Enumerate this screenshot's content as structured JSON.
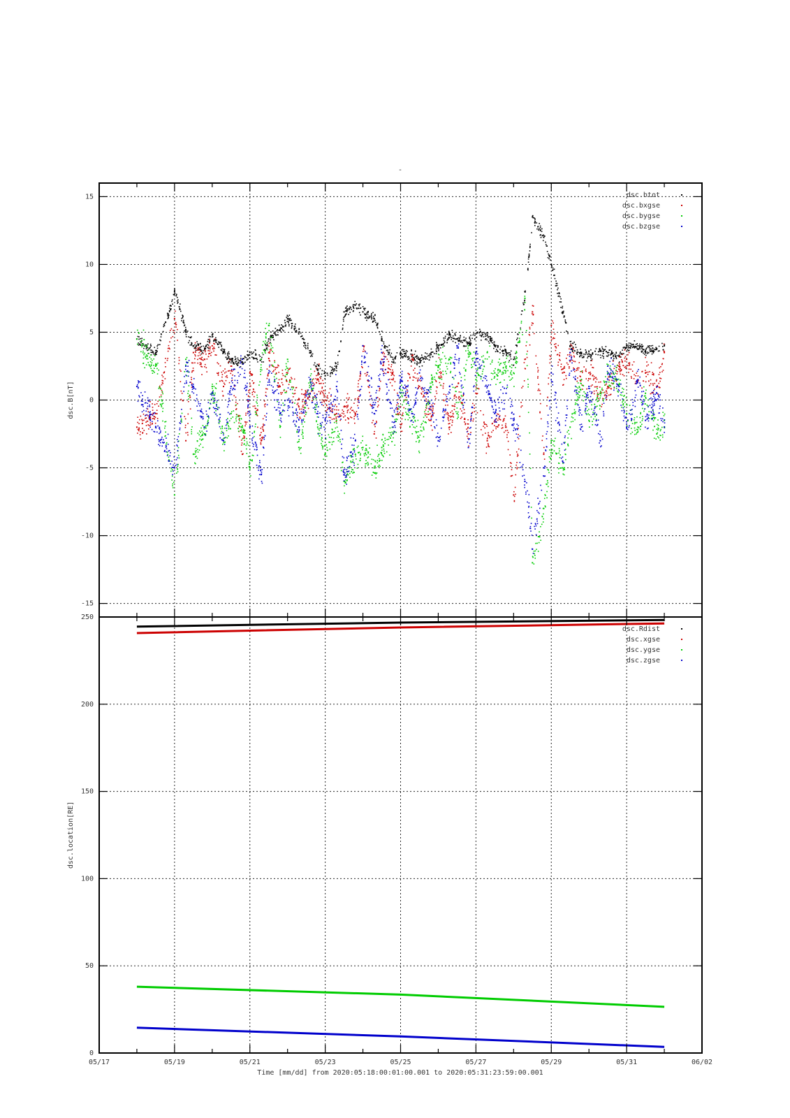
{
  "figure": {
    "top_label": "-",
    "xlabel_text": "Time [mm/dd]  from 2020:05:18:00:01:00.001  to  2020:05:31:23:59:00.001",
    "x_ticks": [
      "05/17",
      "05/19",
      "05/21",
      "05/23",
      "05/25",
      "05/27",
      "05/29",
      "05/31",
      "06/02"
    ]
  },
  "chart_data": [
    {
      "type": "scatter",
      "title": "",
      "ylabel": "dsc.B[nT]",
      "xlabel": "Time [mm/dd]",
      "xlim": [
        "2020-05-17",
        "2020-06-02"
      ],
      "ylim": [
        -16,
        16
      ],
      "y_ticks": [
        -15,
        -10,
        -5,
        0,
        5,
        10,
        15
      ],
      "grid": true,
      "legend_position": "top-right",
      "series": [
        {
          "name": "dsc.btot",
          "color": "#000000",
          "x": [
            1.0,
            1.5,
            2.0,
            2.3,
            2.5,
            2.8,
            3.0,
            3.3,
            3.5,
            3.8,
            4.0,
            4.3,
            4.5,
            4.8,
            5.0,
            5.3,
            5.6,
            5.8,
            6.0,
            6.3,
            6.5,
            6.8,
            7.0,
            7.3,
            7.5,
            7.8,
            8.0,
            8.3,
            8.5,
            8.8,
            9.0,
            9.3,
            9.5,
            9.8,
            10.0,
            10.3,
            10.5,
            10.8,
            11.0,
            11.3,
            11.5,
            11.8,
            12.0,
            12.3,
            12.5,
            12.8,
            13.0,
            13.3,
            13.5,
            13.8,
            14.0,
            14.3,
            14.5,
            14.8,
            15.0
          ],
          "y": [
            4.5,
            3.5,
            8.0,
            5.0,
            4.0,
            3.8,
            4.8,
            3.5,
            3.0,
            2.8,
            3.5,
            3.0,
            4.5,
            5.2,
            6.0,
            5.0,
            3.5,
            2.2,
            1.8,
            2.5,
            6.5,
            7.0,
            6.5,
            6.0,
            4.5,
            3.0,
            3.5,
            3.2,
            3.0,
            3.4,
            4.0,
            4.8,
            4.5,
            4.2,
            4.9,
            4.8,
            4.0,
            3.5,
            3.0,
            8.0,
            13.5,
            12.0,
            10.0,
            6.5,
            4.0,
            3.5,
            3.4,
            3.6,
            3.5,
            3.3,
            4.0,
            4.0,
            3.6,
            3.8,
            4.0
          ]
        },
        {
          "name": "dsc.bxgse",
          "color": "#cc0000",
          "x": [
            1.0,
            1.5,
            2.0,
            2.3,
            2.5,
            2.8,
            3.0,
            3.3,
            3.5,
            3.8,
            4.0,
            4.3,
            4.5,
            4.8,
            5.0,
            5.3,
            5.6,
            5.8,
            6.0,
            6.3,
            6.5,
            6.8,
            7.0,
            7.3,
            7.5,
            7.8,
            8.0,
            8.3,
            8.5,
            8.8,
            9.0,
            9.3,
            9.5,
            9.8,
            10.0,
            10.3,
            10.5,
            10.8,
            11.0,
            11.3,
            11.5,
            11.8,
            12.0,
            12.3,
            12.5,
            12.8,
            13.0,
            13.3,
            13.5,
            13.8,
            14.0,
            14.3,
            14.5,
            14.8,
            15.0
          ],
          "y": [
            -2.0,
            -1.0,
            6.0,
            -3.0,
            3.5,
            3.0,
            4.0,
            1.0,
            2.5,
            -4.0,
            2.0,
            -3.0,
            3.5,
            1.0,
            2.0,
            -0.5,
            0.5,
            1.5,
            0.0,
            -1.0,
            -0.5,
            -1.0,
            4.0,
            -2.5,
            3.0,
            1.5,
            -2.0,
            3.0,
            1.0,
            -1.5,
            2.5,
            -2.0,
            1.0,
            -2.5,
            0.5,
            -3.0,
            -1.5,
            -2.0,
            -7.0,
            3.0,
            6.5,
            -4.0,
            5.5,
            2.0,
            3.5,
            1.5,
            2.0,
            0.5,
            1.0,
            2.5,
            3.0,
            1.5,
            2.0,
            1.0,
            3.5
          ]
        },
        {
          "name": "dsc.bygse",
          "color": "#00cc00",
          "x": [
            1.0,
            1.5,
            2.0,
            2.3,
            2.5,
            2.8,
            3.0,
            3.3,
            3.5,
            3.8,
            4.0,
            4.3,
            4.5,
            4.8,
            5.0,
            5.3,
            5.6,
            5.8,
            6.0,
            6.3,
            6.5,
            6.8,
            7.0,
            7.3,
            7.5,
            7.8,
            8.0,
            8.3,
            8.5,
            8.8,
            9.0,
            9.3,
            9.5,
            9.8,
            10.0,
            10.3,
            10.5,
            10.8,
            11.0,
            11.3,
            11.5,
            11.8,
            12.0,
            12.3,
            12.5,
            12.8,
            13.0,
            13.3,
            13.5,
            13.8,
            14.0,
            14.3,
            14.5,
            14.8,
            15.0
          ],
          "y": [
            4.5,
            2.5,
            -7.0,
            3.0,
            -4.0,
            -2.5,
            1.0,
            -3.0,
            -1.0,
            -2.0,
            -5.0,
            3.0,
            5.5,
            -2.0,
            3.0,
            -3.5,
            1.5,
            -2.0,
            -4.0,
            -1.5,
            -6.0,
            -4.0,
            -3.5,
            -5.0,
            -3.5,
            -2.5,
            0.5,
            -1.5,
            -3.0,
            1.0,
            2.5,
            3.0,
            -1.0,
            4.0,
            1.5,
            3.5,
            2.0,
            2.5,
            2.0,
            7.5,
            -12.0,
            -8.0,
            -3.0,
            -5.0,
            -2.0,
            1.5,
            -1.5,
            0.5,
            2.0,
            1.0,
            -1.0,
            -2.0,
            0.5,
            -2.5,
            -1.5
          ]
        },
        {
          "name": "dsc.bzgse",
          "color": "#0000cc",
          "x": [
            1.0,
            1.5,
            2.0,
            2.3,
            2.5,
            2.8,
            3.0,
            3.3,
            3.5,
            3.8,
            4.0,
            4.3,
            4.5,
            4.8,
            5.0,
            5.3,
            5.6,
            5.8,
            6.0,
            6.3,
            6.5,
            6.8,
            7.0,
            7.3,
            7.5,
            7.8,
            8.0,
            8.3,
            8.5,
            8.8,
            9.0,
            9.3,
            9.5,
            9.8,
            10.0,
            10.3,
            10.5,
            10.8,
            11.0,
            11.3,
            11.5,
            11.8,
            12.0,
            12.3,
            12.5,
            12.8,
            13.0,
            13.3,
            13.5,
            13.8,
            14.0,
            14.3,
            14.5,
            14.8,
            15.0
          ],
          "y": [
            1.0,
            -2.0,
            -5.0,
            2.5,
            1.0,
            -2.0,
            0.5,
            -3.0,
            1.0,
            3.0,
            -2.0,
            -5.5,
            2.0,
            -1.0,
            0.0,
            -2.0,
            1.5,
            -1.0,
            -1.5,
            1.0,
            -5.5,
            -3.0,
            4.0,
            -1.0,
            3.5,
            -2.0,
            1.5,
            -1.0,
            2.0,
            -0.5,
            -3.0,
            1.0,
            4.0,
            -3.5,
            3.5,
            1.0,
            -1.0,
            0.5,
            -1.5,
            -6.0,
            -11.0,
            -5.0,
            2.0,
            -4.5,
            3.5,
            -2.0,
            1.0,
            -3.0,
            2.5,
            1.0,
            -2.0,
            1.5,
            -1.5,
            0.5,
            -2.0
          ]
        }
      ]
    },
    {
      "type": "line",
      "title": "",
      "ylabel": "dsc.location[RE]",
      "xlabel": "Time [mm/dd]",
      "xlim": [
        "2020-05-17",
        "2020-06-02"
      ],
      "ylim": [
        0,
        250
      ],
      "y_ticks": [
        0,
        50,
        100,
        150,
        200,
        250
      ],
      "grid": true,
      "legend_position": "top-right",
      "series": [
        {
          "name": "dsc.Rdist",
          "color": "#000000",
          "x": [
            1.0,
            8.0,
            15.0
          ],
          "y": [
            244.5,
            246.8,
            248.3
          ]
        },
        {
          "name": "dsc.xgse",
          "color": "#cc0000",
          "x": [
            1.0,
            8.0,
            15.0
          ],
          "y": [
            240.8,
            244.0,
            246.3
          ]
        },
        {
          "name": "dsc.ygse",
          "color": "#00cc00",
          "x": [
            1.0,
            8.0,
            15.0
          ],
          "y": [
            38.0,
            33.5,
            26.5
          ]
        },
        {
          "name": "dsc.zgse",
          "color": "#0000cc",
          "x": [
            1.0,
            8.0,
            15.0
          ],
          "y": [
            14.5,
            9.5,
            3.5
          ]
        }
      ]
    }
  ]
}
